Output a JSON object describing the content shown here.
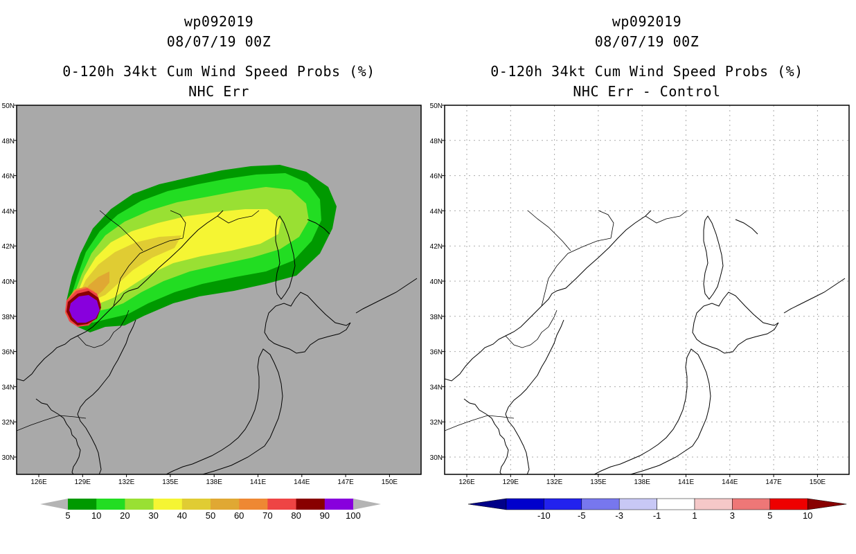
{
  "left_panel": {
    "title_line1": "wp092019",
    "title_line2": "08/07/19 00Z",
    "title_line3": "0-120h 34kt Cum Wind Speed Probs (%)",
    "title_line4": "NHC Err",
    "background_color": "#a9a9a9",
    "colorbar": {
      "colors": [
        "#009900",
        "#22dd22",
        "#99e033",
        "#f5f533",
        "#e0cc33",
        "#e0a833",
        "#ee8833",
        "#ee4444",
        "#880000",
        "#8800dd"
      ],
      "labels": [
        "5",
        "10",
        "20",
        "30",
        "40",
        "50",
        "60",
        "70",
        "80",
        "90",
        "100"
      ],
      "end_color": "#b4b4b4"
    }
  },
  "right_panel": {
    "title_line1": "wp092019",
    "title_line2": "08/07/19 00Z",
    "title_line3": "0-120h 34kt Cum Wind Speed Probs (%)",
    "title_line4": "NHC Err - Control",
    "background_color": "#ffffff",
    "colorbar": {
      "colors": [
        "#0000cc",
        "#2222ee",
        "#7777ee",
        "#c8c8f5",
        "#ffffff",
        "#f5c8c8",
        "#ee7777",
        "#ee0000"
      ],
      "labels": [
        "-10",
        "-5",
        "-3",
        "-1",
        "1",
        "3",
        "5",
        "10"
      ],
      "low_end_color": "#000088",
      "high_end_color": "#880000"
    }
  },
  "map": {
    "lon_labels": [
      "126E",
      "129E",
      "132E",
      "135E",
      "138E",
      "141E",
      "144E",
      "147E",
      "150E"
    ],
    "lat_labels": [
      "50N",
      "48N",
      "46N",
      "44N",
      "42N",
      "40N",
      "38N",
      "36N",
      "34N",
      "32N",
      "30N"
    ]
  }
}
